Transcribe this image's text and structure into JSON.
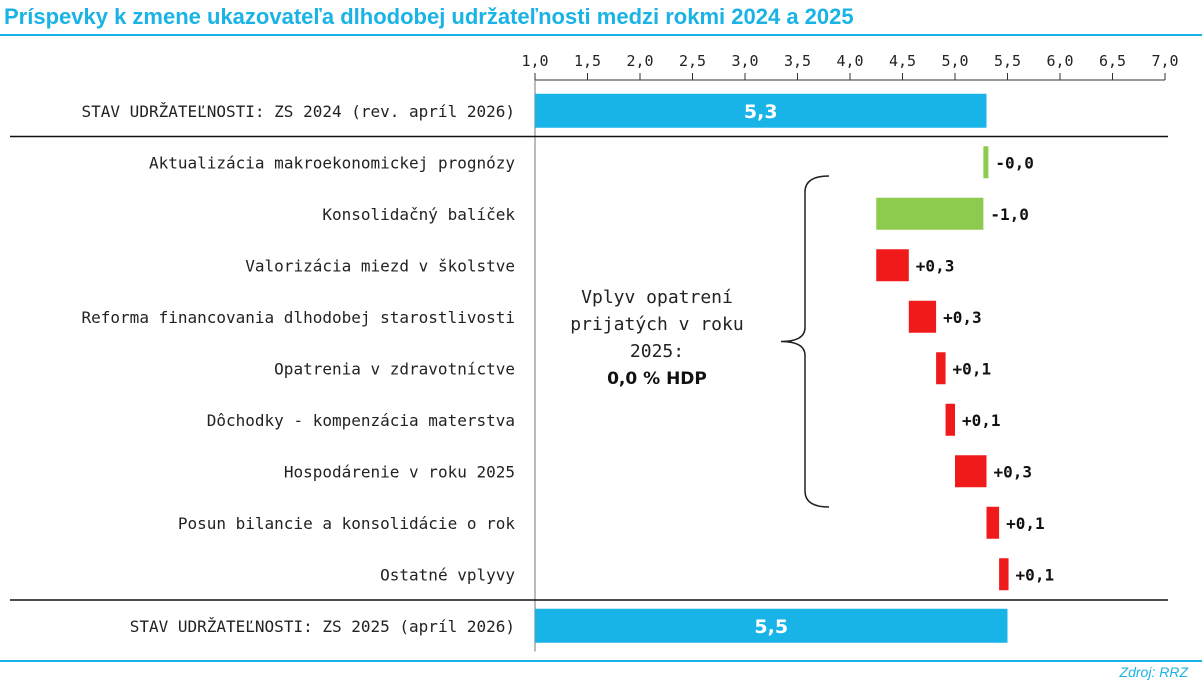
{
  "title": "Príspevky k zmene ukazovateľa dlhodobej udržateľnosti medzi rokmi 2024 a 2025",
  "source": "Zdroj: RRZ",
  "colors": {
    "total": "#18B4E8",
    "negative": "#8CCB4E",
    "positive": "#F01A1A",
    "accent": "#1AB3E6"
  },
  "chart_data": {
    "type": "bar",
    "subtype": "waterfall",
    "orientation": "horizontal",
    "xlim": [
      1.0,
      7.0
    ],
    "ticks": [
      "1,0",
      "1,5",
      "2,0",
      "2,5",
      "3,0",
      "3,5",
      "4,0",
      "4,5",
      "5,0",
      "5,5",
      "6,0",
      "6,5",
      "7,0"
    ],
    "tick_values": [
      1.0,
      1.5,
      2.0,
      2.5,
      3.0,
      3.5,
      4.0,
      4.5,
      5.0,
      5.5,
      6.0,
      6.5,
      7.0
    ],
    "axis_position": "top",
    "grid": false,
    "items": [
      {
        "label": "STAV UDRŽATEĽNOSTI: ZS 2024 (rev. apríl 2026)",
        "kind": "total",
        "start": 1.0,
        "end": 5.3,
        "value_label": "5,3"
      },
      {
        "label": "Aktualizácia makroekonomickej prognózy",
        "kind": "negative",
        "start": 5.3,
        "end": 5.27,
        "value_label": "-0,0"
      },
      {
        "label": "Konsolidačný balíček",
        "kind": "negative",
        "start": 5.27,
        "end": 4.25,
        "value_label": "-1,0"
      },
      {
        "label": "Valorizácia miezd v školstve",
        "kind": "positive",
        "start": 4.25,
        "end": 4.56,
        "value_label": "+0,3"
      },
      {
        "label": "Reforma financovania dlhodobej starostlivosti",
        "kind": "positive",
        "start": 4.56,
        "end": 4.82,
        "value_label": "+0,3"
      },
      {
        "label": "Opatrenia v zdravotníctve",
        "kind": "positive",
        "start": 4.82,
        "end": 4.91,
        "value_label": "+0,1"
      },
      {
        "label": "Dôchodky - kompenzácia materstva",
        "kind": "positive",
        "start": 4.91,
        "end": 5.0,
        "value_label": "+0,1"
      },
      {
        "label": "Hospodárenie v roku 2025",
        "kind": "positive",
        "start": 5.0,
        "end": 5.3,
        "value_label": "+0,3"
      },
      {
        "label": "Posun bilancie a konsolidácie o rok",
        "kind": "positive",
        "start": 5.3,
        "end": 5.42,
        "value_label": "+0,1"
      },
      {
        "label": "Ostatné vplyvy",
        "kind": "positive",
        "start": 5.42,
        "end": 5.51,
        "value_label": "+0,1"
      },
      {
        "label": "STAV UDRŽATEĽNOSTI: ZS 2025 (apríl 2026)",
        "kind": "total",
        "start": 1.0,
        "end": 5.5,
        "value_label": "5,5"
      }
    ],
    "annotation": {
      "lines": [
        "Vplyv opatrení",
        "prijatých v roku",
        "2025:"
      ],
      "bold_line": "0,0 % HDP",
      "bracket_from_item": 2,
      "bracket_to_item": 7
    }
  }
}
